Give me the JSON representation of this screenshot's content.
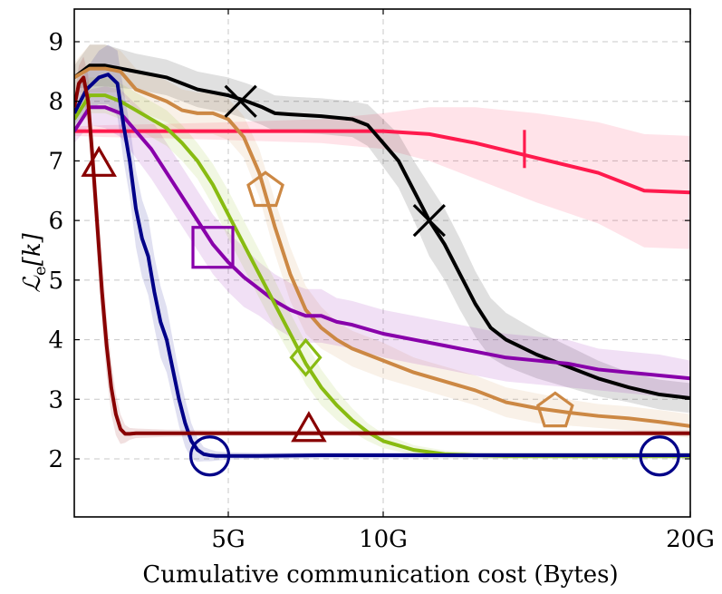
{
  "chart_data": {
    "type": "line",
    "xlabel": "Cumulative communication cost (Bytes)",
    "ylabel_base": "ℒ",
    "ylabel_sub": "e",
    "ylabel_arg": "[k]",
    "xlim": [
      0,
      20
    ],
    "ylim": [
      1,
      9.8
    ],
    "x_ticks": [
      5,
      10,
      20
    ],
    "x_tick_labels": [
      "5G",
      "10G",
      "20G"
    ],
    "y_ticks": [
      2,
      3,
      4,
      5,
      6,
      7,
      8,
      9
    ],
    "y_tick_labels": [
      "2",
      "3",
      "4",
      "5",
      "6",
      "7",
      "8",
      "9"
    ],
    "grid": true,
    "series": [
      {
        "color": "#ff1a4d",
        "marker": "vbar",
        "markers_at": [
          [
            14.6,
            7.2
          ]
        ],
        "x": [
          0,
          1,
          3,
          5,
          8,
          10,
          11.5,
          13,
          15,
          17,
          18.5,
          20
        ],
        "y": [
          7.5,
          7.5,
          7.5,
          7.5,
          7.5,
          7.5,
          7.45,
          7.3,
          7.05,
          6.8,
          6.5,
          6.47
        ],
        "band": [
          0.08,
          0.1,
          0.12,
          0.15,
          0.2,
          0.3,
          0.45,
          0.6,
          0.75,
          0.85,
          0.95,
          0.95
        ]
      },
      {
        "color": "#000000",
        "marker": "x",
        "markers_at": [
          [
            5.4,
            8.0
          ],
          [
            11.5,
            6.0
          ]
        ],
        "x": [
          0,
          0.5,
          1,
          2,
          3,
          3.5,
          4,
          5,
          5.6,
          6.1,
          6.5,
          7,
          8,
          9,
          9.5,
          10,
          10.5,
          11,
          11.5,
          12,
          12.5,
          13,
          13.5,
          14,
          15,
          16,
          17,
          18,
          19,
          20
        ],
        "y": [
          8.4,
          8.6,
          8.6,
          8.5,
          8.4,
          8.3,
          8.2,
          8.1,
          8.0,
          7.9,
          7.8,
          7.78,
          7.75,
          7.7,
          7.6,
          7.3,
          7.0,
          6.5,
          6.0,
          5.6,
          5.1,
          4.6,
          4.2,
          4.0,
          3.75,
          3.55,
          3.35,
          3.2,
          3.08,
          3.02
        ],
        "band": [
          0.2,
          0.35,
          0.35,
          0.3,
          0.3,
          0.3,
          0.3,
          0.3,
          0.3,
          0.3,
          0.3,
          0.3,
          0.3,
          0.3,
          0.35,
          0.4,
          0.45,
          0.5,
          0.6,
          0.6,
          0.6,
          0.55,
          0.5,
          0.45,
          0.4,
          0.35,
          0.3,
          0.25,
          0.25,
          0.25
        ]
      },
      {
        "color": "#cc8844",
        "marker": "pentagon",
        "markers_at": [
          [
            6.2,
            6.5
          ],
          [
            15.6,
            2.8
          ]
        ],
        "x": [
          0,
          0.5,
          1,
          1.5,
          2,
          2.5,
          3,
          3.5,
          4,
          4.5,
          5,
          5.5,
          6,
          6.5,
          7,
          7.5,
          8,
          8.5,
          9,
          10,
          11,
          12,
          13,
          14,
          15,
          16,
          17,
          18,
          19,
          20
        ],
        "y": [
          8.4,
          8.55,
          8.55,
          8.5,
          8.2,
          8.1,
          8.0,
          7.85,
          7.8,
          7.8,
          7.7,
          7.4,
          6.8,
          5.9,
          5.1,
          4.5,
          4.2,
          4.0,
          3.85,
          3.65,
          3.45,
          3.3,
          3.15,
          2.95,
          2.85,
          2.78,
          2.72,
          2.68,
          2.62,
          2.55
        ],
        "band": [
          0.25,
          0.4,
          0.4,
          0.35,
          0.35,
          0.35,
          0.35,
          0.35,
          0.35,
          0.35,
          0.35,
          0.35,
          0.4,
          0.45,
          0.45,
          0.4,
          0.35,
          0.3,
          0.3,
          0.3,
          0.25,
          0.25,
          0.25,
          0.25,
          0.25,
          0.22,
          0.2,
          0.2,
          0.2,
          0.2
        ]
      },
      {
        "color": "#8800aa",
        "marker": "square",
        "markers_at": [
          [
            4.5,
            5.55
          ]
        ],
        "x": [
          0,
          0.5,
          1,
          1.5,
          2,
          2.5,
          3,
          3.5,
          4,
          4.5,
          5,
          5.5,
          6,
          6.5,
          7,
          7.5,
          8,
          8.5,
          9,
          10,
          11,
          12,
          13,
          14,
          15,
          16,
          17,
          18,
          19,
          20
        ],
        "y": [
          7.5,
          7.9,
          7.9,
          7.8,
          7.5,
          7.2,
          6.8,
          6.4,
          6.0,
          5.6,
          5.3,
          5.05,
          4.85,
          4.65,
          4.5,
          4.4,
          4.4,
          4.3,
          4.25,
          4.1,
          4.0,
          3.9,
          3.8,
          3.7,
          3.65,
          3.6,
          3.5,
          3.45,
          3.4,
          3.35
        ],
        "band": [
          0.2,
          0.3,
          0.35,
          0.4,
          0.45,
          0.5,
          0.5,
          0.5,
          0.5,
          0.5,
          0.5,
          0.5,
          0.45,
          0.45,
          0.45,
          0.45,
          0.45,
          0.4,
          0.4,
          0.4,
          0.4,
          0.4,
          0.4,
          0.4,
          0.4,
          0.4,
          0.35,
          0.35,
          0.35,
          0.3
        ]
      },
      {
        "color": "#88bb11",
        "marker": "diamond",
        "markers_at": [
          [
            7.5,
            3.7
          ]
        ],
        "x": [
          0,
          0.5,
          1,
          1.5,
          2,
          2.5,
          3,
          3.5,
          4,
          4.5,
          5,
          5.5,
          6,
          6.5,
          7,
          7.5,
          8,
          8.5,
          9,
          9.5,
          10,
          11,
          12,
          13,
          14,
          15,
          16,
          17,
          18,
          19,
          20
        ],
        "y": [
          7.7,
          8.1,
          8.1,
          8.0,
          7.85,
          7.7,
          7.55,
          7.3,
          7.0,
          6.6,
          6.1,
          5.6,
          5.1,
          4.6,
          4.1,
          3.6,
          3.2,
          2.9,
          2.65,
          2.45,
          2.3,
          2.15,
          2.08,
          2.06,
          2.05,
          2.05,
          2.05,
          2.05,
          2.05,
          2.05,
          2.05
        ],
        "band": [
          0.2,
          0.3,
          0.3,
          0.3,
          0.3,
          0.3,
          0.3,
          0.3,
          0.3,
          0.35,
          0.4,
          0.4,
          0.4,
          0.4,
          0.35,
          0.35,
          0.3,
          0.25,
          0.2,
          0.15,
          0.12,
          0.08,
          0.06,
          0.05,
          0.05,
          0.05,
          0.05,
          0.05,
          0.05,
          0.05,
          0.05
        ]
      },
      {
        "color": "#000088",
        "marker": "circle",
        "markers_at": [
          [
            4.4,
            2.05
          ],
          [
            19.0,
            2.05
          ]
        ],
        "x": [
          0,
          0.4,
          0.8,
          1.1,
          1.4,
          1.6,
          1.8,
          2.0,
          2.2,
          2.4,
          2.6,
          2.8,
          3.0,
          3.2,
          3.4,
          3.6,
          3.8,
          4.0,
          4.2,
          4.4,
          4.6,
          5,
          6,
          8,
          10,
          12,
          14,
          16,
          18,
          20
        ],
        "y": [
          7.8,
          8.2,
          8.4,
          8.45,
          8.3,
          7.6,
          7.0,
          6.2,
          5.7,
          5.4,
          4.8,
          4.3,
          4.0,
          3.5,
          3.0,
          2.6,
          2.3,
          2.15,
          2.08,
          2.06,
          2.05,
          2.05,
          2.05,
          2.06,
          2.06,
          2.06,
          2.06,
          2.06,
          2.06,
          2.06
        ],
        "band": [
          0.2,
          0.35,
          0.45,
          0.5,
          0.55,
          0.6,
          0.6,
          0.65,
          0.65,
          0.65,
          0.6,
          0.6,
          0.55,
          0.5,
          0.45,
          0.4,
          0.3,
          0.2,
          0.12,
          0.1,
          0.08,
          0.06,
          0.05,
          0.05,
          0.05,
          0.05,
          0.05,
          0.05,
          0.05,
          0.05
        ]
      },
      {
        "color": "#880000",
        "marker": "triangle",
        "markers_at": [
          [
            0.8,
            6.95
          ],
          [
            7.6,
            2.5
          ]
        ],
        "x": [
          0,
          0.15,
          0.3,
          0.45,
          0.6,
          0.75,
          0.9,
          1.05,
          1.2,
          1.35,
          1.5,
          1.65,
          1.8,
          2.0,
          3,
          5,
          10,
          15,
          20
        ],
        "y": [
          7.9,
          8.3,
          8.4,
          8.0,
          7.0,
          5.9,
          4.8,
          3.9,
          3.2,
          2.75,
          2.5,
          2.42,
          2.42,
          2.43,
          2.43,
          2.43,
          2.43,
          2.43,
          2.43
        ],
        "band": [
          0.2,
          0.3,
          0.35,
          0.45,
          0.5,
          0.55,
          0.55,
          0.5,
          0.45,
          0.35,
          0.25,
          0.15,
          0.1,
          0.08,
          0.06,
          0.05,
          0.05,
          0.05,
          0.05
        ]
      }
    ]
  }
}
